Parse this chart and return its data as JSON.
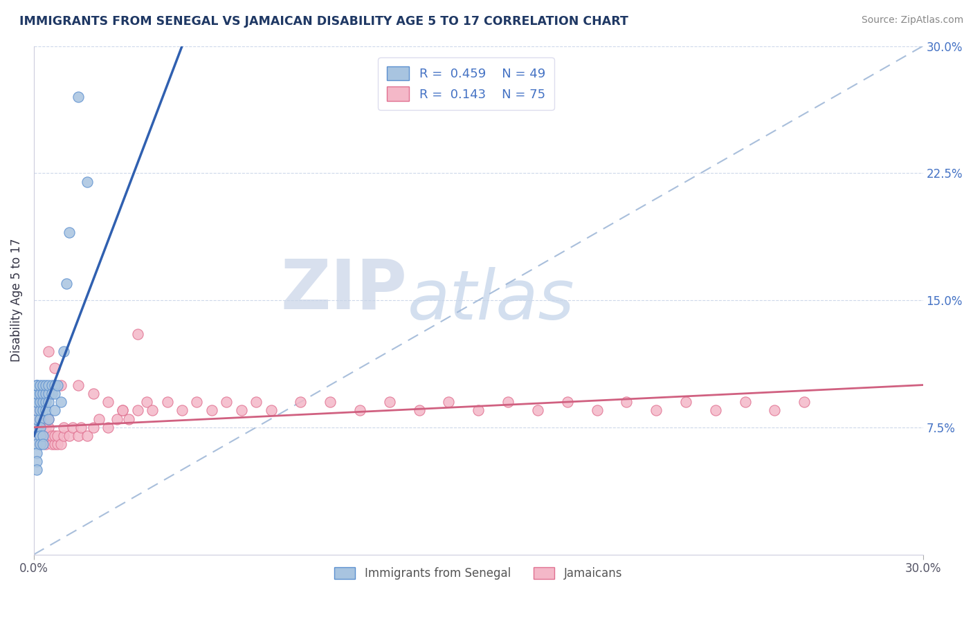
{
  "title": "IMMIGRANTS FROM SENEGAL VS JAMAICAN DISABILITY AGE 5 TO 17 CORRELATION CHART",
  "source": "Source: ZipAtlas.com",
  "ylabel": "Disability Age 5 to 17",
  "xlim": [
    0.0,
    0.3
  ],
  "ylim": [
    0.0,
    0.3
  ],
  "xtick_vals": [
    0.0,
    0.3
  ],
  "xtick_labels": [
    "0.0%",
    "30.0%"
  ],
  "ytick_right_labels": [
    "7.5%",
    "15.0%",
    "22.5%",
    "30.0%"
  ],
  "ytick_right_vals": [
    0.075,
    0.15,
    0.225,
    0.3
  ],
  "legend_label1": "Immigrants from Senegal",
  "legend_label2": "Jamaicans",
  "R1": 0.459,
  "N1": 49,
  "R2": 0.143,
  "N2": 75,
  "color_senegal_fill": "#a8c4e0",
  "color_senegal_edge": "#5b8fcf",
  "color_jamaican_fill": "#f4b8c8",
  "color_jamaican_edge": "#e07090",
  "color_senegal_line": "#3060b0",
  "color_jamaican_line": "#d06080",
  "color_diag": "#a0b8d8",
  "title_color": "#1f3864",
  "tick_color_right": "#4472c4",
  "background_color": "#ffffff",
  "watermark_zip": "ZIP",
  "watermark_atlas": "atlas",
  "grid_color": "#c8d4e8",
  "senegal_x": [
    0.001,
    0.001,
    0.001,
    0.001,
    0.001,
    0.001,
    0.001,
    0.001,
    0.001,
    0.001,
    0.001,
    0.001,
    0.001,
    0.001,
    0.001,
    0.002,
    0.002,
    0.002,
    0.002,
    0.002,
    0.002,
    0.002,
    0.002,
    0.003,
    0.003,
    0.003,
    0.003,
    0.003,
    0.003,
    0.004,
    0.004,
    0.004,
    0.004,
    0.005,
    0.005,
    0.005,
    0.005,
    0.006,
    0.006,
    0.007,
    0.007,
    0.007,
    0.008,
    0.009,
    0.01,
    0.011,
    0.012,
    0.015,
    0.018
  ],
  "senegal_y": [
    0.075,
    0.08,
    0.085,
    0.09,
    0.09,
    0.095,
    0.095,
    0.1,
    0.1,
    0.1,
    0.07,
    0.065,
    0.06,
    0.055,
    0.05,
    0.08,
    0.085,
    0.09,
    0.095,
    0.1,
    0.075,
    0.07,
    0.065,
    0.085,
    0.09,
    0.095,
    0.1,
    0.07,
    0.065,
    0.09,
    0.095,
    0.1,
    0.085,
    0.095,
    0.1,
    0.09,
    0.08,
    0.1,
    0.095,
    0.1,
    0.095,
    0.085,
    0.1,
    0.09,
    0.12,
    0.16,
    0.19,
    0.27,
    0.22
  ],
  "jamaican_x": [
    0.001,
    0.001,
    0.001,
    0.001,
    0.001,
    0.002,
    0.002,
    0.002,
    0.002,
    0.003,
    0.003,
    0.003,
    0.004,
    0.004,
    0.004,
    0.005,
    0.005,
    0.005,
    0.006,
    0.006,
    0.007,
    0.007,
    0.008,
    0.008,
    0.009,
    0.01,
    0.01,
    0.012,
    0.013,
    0.015,
    0.016,
    0.018,
    0.02,
    0.022,
    0.025,
    0.028,
    0.03,
    0.032,
    0.035,
    0.038,
    0.04,
    0.045,
    0.05,
    0.055,
    0.06,
    0.065,
    0.07,
    0.075,
    0.08,
    0.09,
    0.1,
    0.11,
    0.12,
    0.13,
    0.14,
    0.15,
    0.16,
    0.17,
    0.18,
    0.19,
    0.2,
    0.21,
    0.22,
    0.23,
    0.24,
    0.25,
    0.26,
    0.005,
    0.007,
    0.009,
    0.015,
    0.02,
    0.025,
    0.03,
    0.035
  ],
  "jamaican_y": [
    0.07,
    0.075,
    0.08,
    0.085,
    0.09,
    0.065,
    0.07,
    0.075,
    0.08,
    0.07,
    0.075,
    0.08,
    0.065,
    0.07,
    0.075,
    0.07,
    0.075,
    0.08,
    0.065,
    0.07,
    0.065,
    0.07,
    0.065,
    0.07,
    0.065,
    0.07,
    0.075,
    0.07,
    0.075,
    0.07,
    0.075,
    0.07,
    0.075,
    0.08,
    0.075,
    0.08,
    0.085,
    0.08,
    0.085,
    0.09,
    0.085,
    0.09,
    0.085,
    0.09,
    0.085,
    0.09,
    0.085,
    0.09,
    0.085,
    0.09,
    0.09,
    0.085,
    0.09,
    0.085,
    0.09,
    0.085,
    0.09,
    0.085,
    0.09,
    0.085,
    0.09,
    0.085,
    0.09,
    0.085,
    0.09,
    0.085,
    0.09,
    0.12,
    0.11,
    0.1,
    0.1,
    0.095,
    0.09,
    0.085,
    0.13
  ],
  "senegal_line_x": [
    0.0,
    0.05
  ],
  "senegal_line_y": [
    0.07,
    0.3
  ],
  "jamaican_line_x": [
    0.0,
    0.3
  ],
  "jamaican_line_y": [
    0.075,
    0.1
  ],
  "diag_line_x": [
    0.0,
    0.3
  ],
  "diag_line_y": [
    0.0,
    0.3
  ]
}
